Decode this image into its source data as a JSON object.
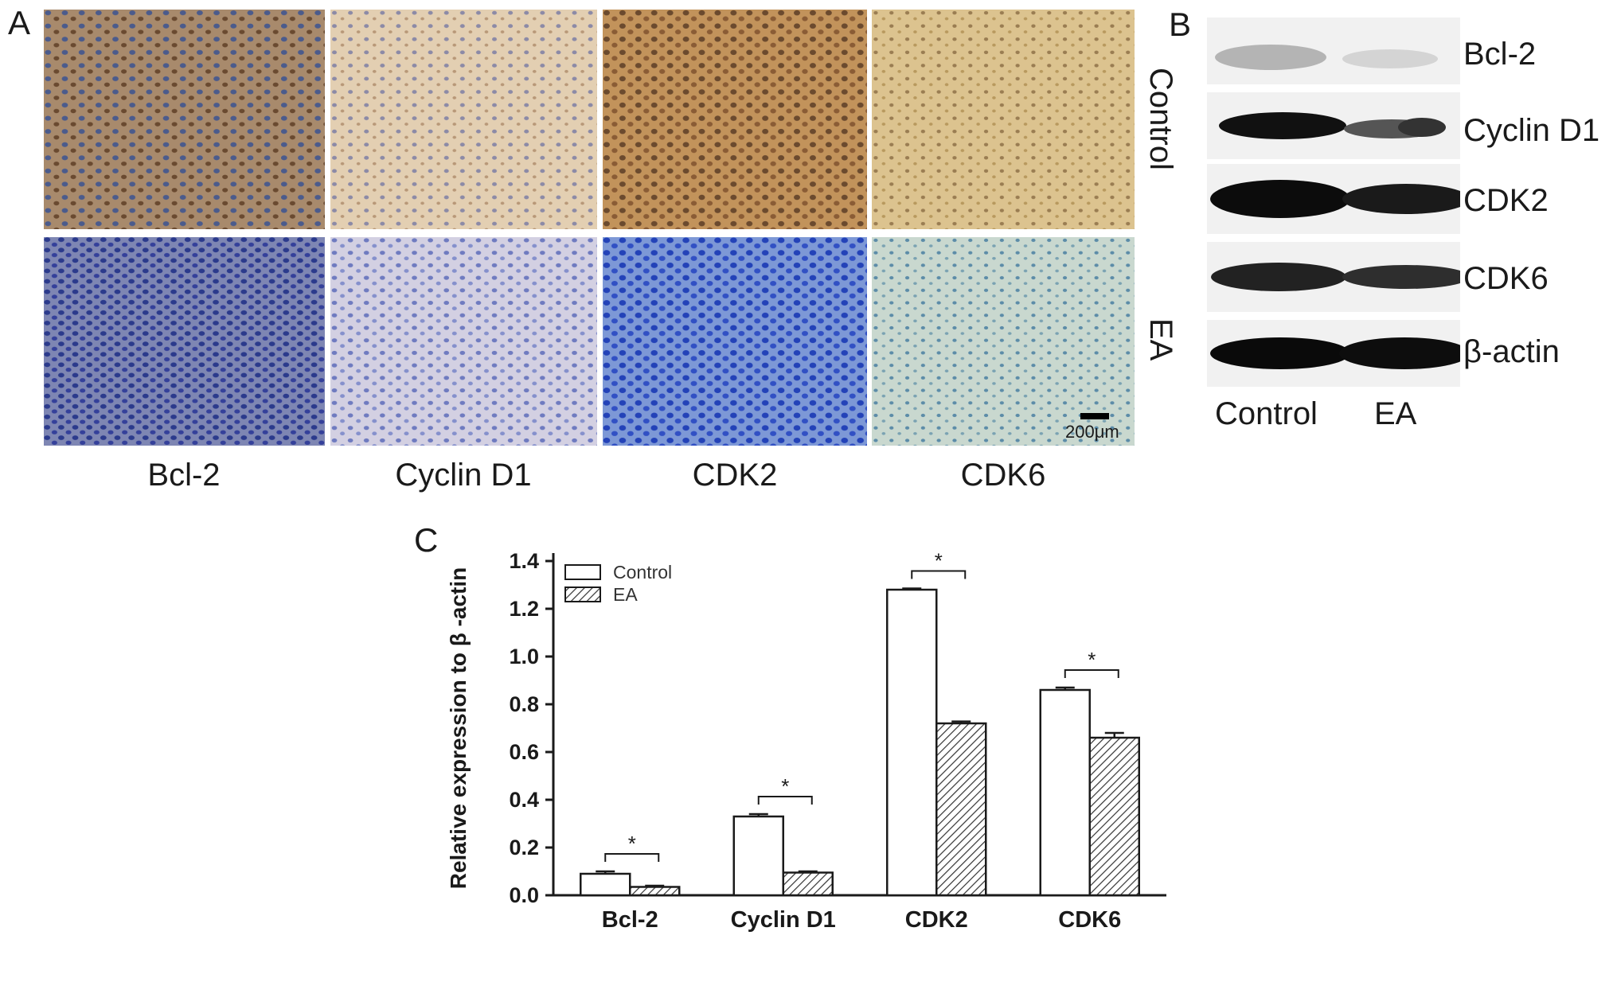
{
  "panel_a": {
    "letter": "A",
    "columns": [
      "Bcl-2",
      "Cyclin D1",
      "CDK2",
      "CDK6"
    ],
    "rows": [
      "Control",
      "EA"
    ],
    "scale_bar": "200μm"
  },
  "panel_b": {
    "letter": "B",
    "bands": [
      "Bcl-2",
      "Cyclin D1",
      "CDK2",
      "CDK6",
      "β-actin"
    ],
    "lanes": [
      "Control",
      "EA"
    ]
  },
  "panel_c": {
    "letter": "C"
  },
  "chart_data": {
    "type": "bar",
    "categories": [
      "Bcl-2",
      "Cyclin D1",
      "CDK2",
      "CDK6"
    ],
    "series": [
      {
        "name": "Control",
        "values": [
          0.09,
          0.33,
          1.28,
          0.86
        ],
        "errors": [
          0.01,
          0.01,
          0.005,
          0.01
        ]
      },
      {
        "name": "EA",
        "values": [
          0.035,
          0.095,
          0.72,
          0.66
        ],
        "errors": [
          0.005,
          0.005,
          0.008,
          0.02
        ]
      }
    ],
    "significance": [
      "*",
      "*",
      "*",
      "*"
    ],
    "ylabel": "Relative expression to β -actin",
    "xlabel": "",
    "ylim": [
      0.0,
      1.4
    ],
    "yticks": [
      "0.0",
      "0.2",
      "0.4",
      "0.6",
      "0.8",
      "1.0",
      "1.2",
      "1.4"
    ],
    "legend_position": "top-left",
    "grid": false,
    "colors": {
      "Control": "#ffffff",
      "EA": "hatched",
      "stroke": "#1a1a1a"
    }
  }
}
